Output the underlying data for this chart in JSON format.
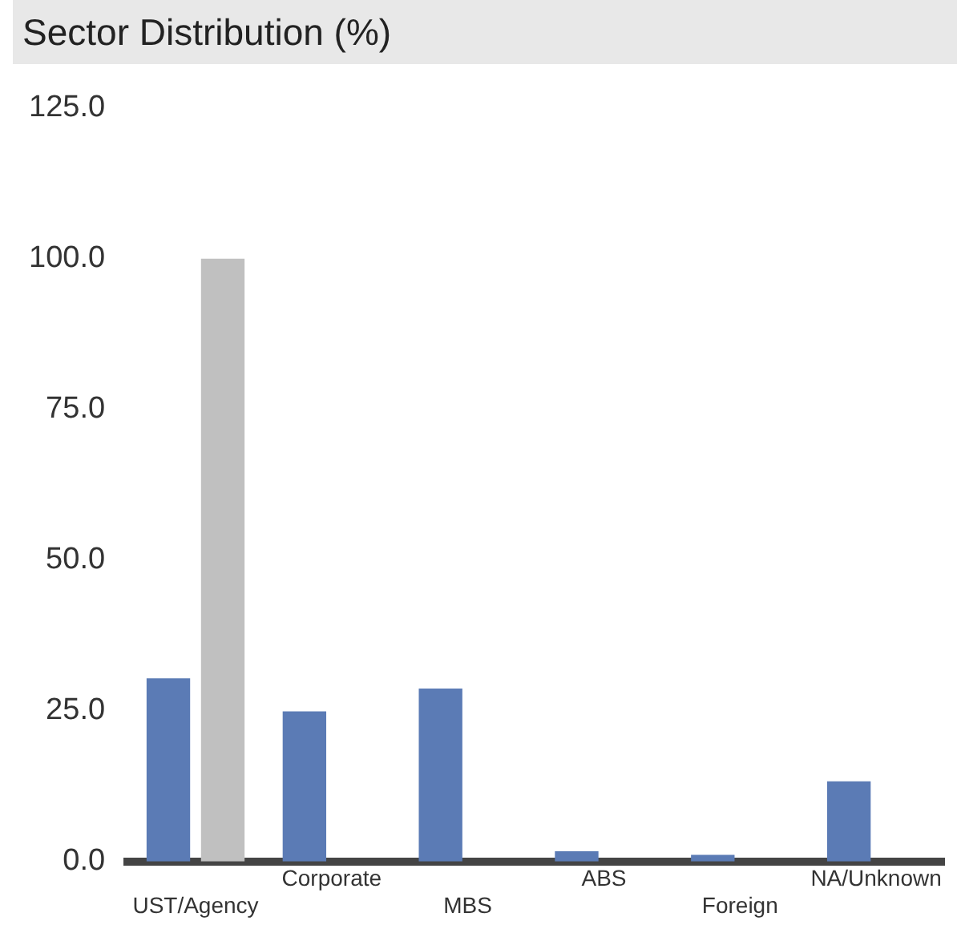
{
  "chart_data": {
    "type": "bar",
    "title": "Sector Distribution (%)",
    "categories": [
      "UST/Agency",
      "Corporate",
      "MBS",
      "ABS",
      "Foreign",
      "NA/Unknown"
    ],
    "series": [
      {
        "color": "#5b7bb5",
        "values": [
          30.4,
          24.9,
          28.7,
          1.7,
          1.1,
          13.3
        ]
      },
      {
        "color": "#c0c0c0",
        "values": [
          100,
          0,
          0,
          0,
          0,
          0
        ]
      }
    ],
    "ylim": [
      0,
      125
    ],
    "yticks": [
      {
        "value": 0,
        "label": "0.0"
      },
      {
        "value": 25,
        "label": "25.0"
      },
      {
        "value": 50,
        "label": "50.0"
      },
      {
        "value": 75,
        "label": "75.0"
      },
      {
        "value": 100,
        "label": "100.0"
      },
      {
        "value": 125,
        "label": "125.0"
      }
    ],
    "grid": false,
    "legend": false
  }
}
